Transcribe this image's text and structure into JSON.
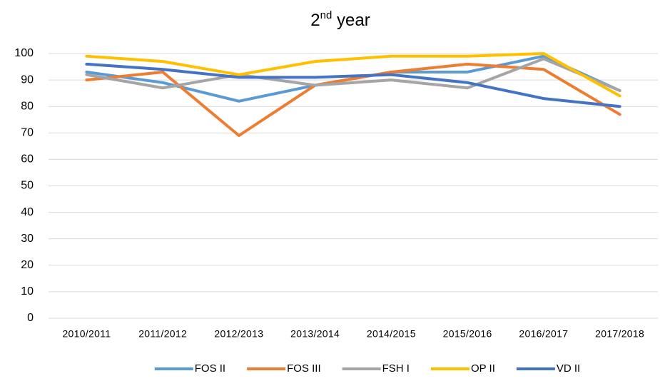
{
  "chart_data": {
    "type": "line",
    "title": "2nd year",
    "categories": [
      "2010/2011",
      "2011/2012",
      "2012/2013",
      "2013/2014",
      "2014/2015",
      "2015/2016",
      "2016/2017",
      "2017/2018"
    ],
    "series": [
      {
        "name": "FOS II",
        "color": "#5b9bd5",
        "values": [
          93,
          89,
          82,
          88,
          93,
          93,
          99,
          86
        ]
      },
      {
        "name": "FOS III",
        "color": "#ed7d31",
        "values": [
          90,
          93,
          69,
          88,
          93,
          96,
          94,
          77
        ]
      },
      {
        "name": "FSH I",
        "color": "#a5a5a5",
        "values": [
          92,
          87,
          92,
          88,
          90,
          87,
          98,
          86
        ]
      },
      {
        "name": "OP II",
        "color": "#ffc000",
        "values": [
          99,
          97,
          92,
          97,
          99,
          99,
          100,
          84
        ]
      },
      {
        "name": "VD II",
        "color": "#4472c4",
        "values": [
          96,
          94,
          91,
          91,
          92,
          89,
          83,
          80
        ]
      }
    ],
    "ylim": [
      0,
      100
    ],
    "yticks": [
      0,
      10,
      20,
      30,
      40,
      50,
      60,
      70,
      80,
      90,
      100
    ],
    "grid": true,
    "legend": "bottom"
  }
}
